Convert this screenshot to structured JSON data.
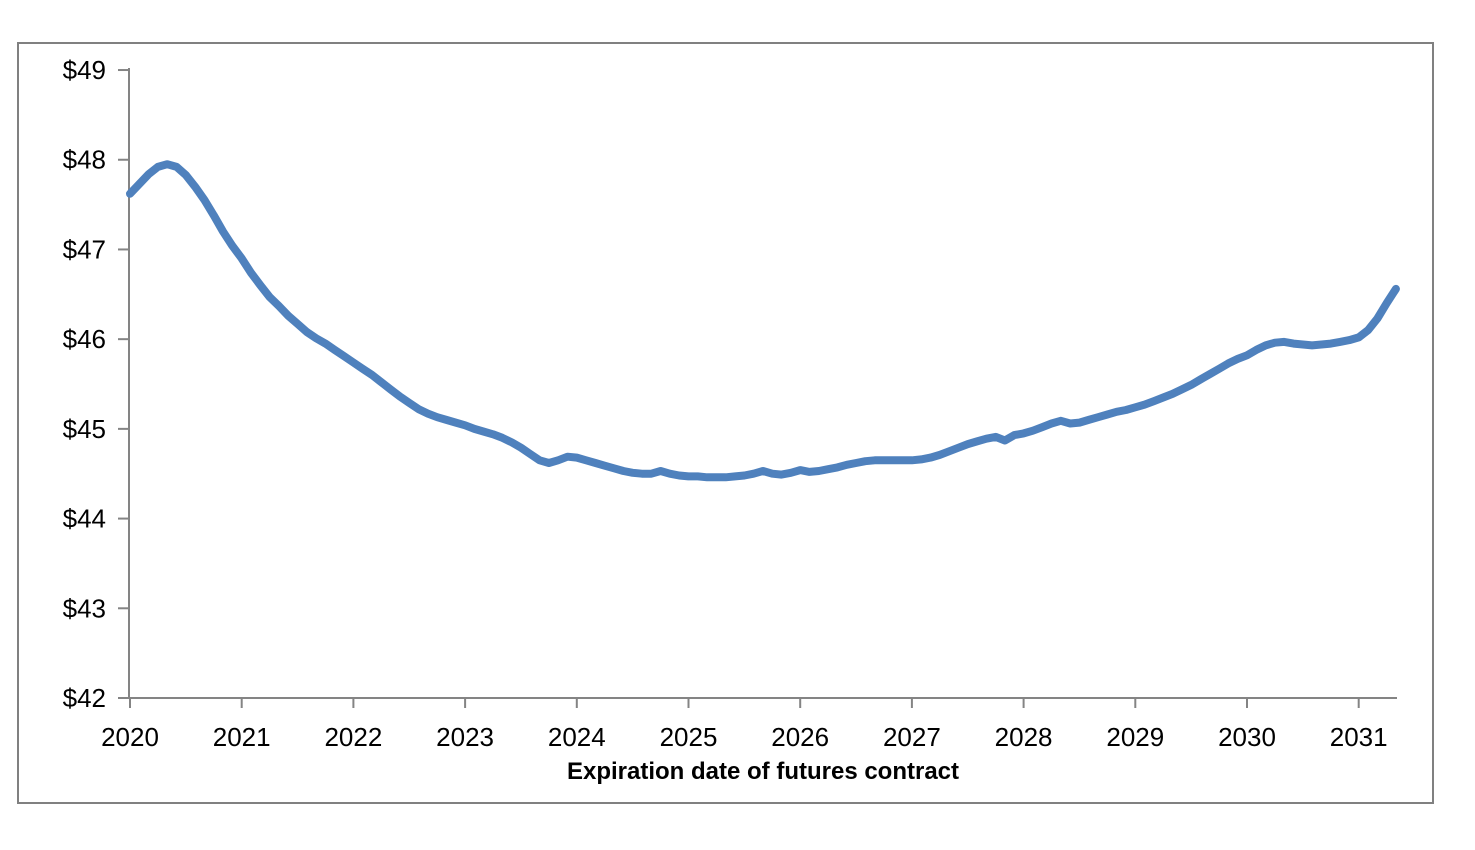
{
  "chart_data": {
    "type": "line",
    "title": "",
    "xlabel": "Expiration date of futures contract",
    "ylabel": "",
    "x_tick_labels": [
      "2020",
      "2021",
      "2022",
      "2023",
      "2024",
      "2025",
      "2026",
      "2027",
      "2028",
      "2029",
      "2030",
      "2031"
    ],
    "x_tick_values": [
      2020,
      2021,
      2022,
      2023,
      2024,
      2025,
      2026,
      2027,
      2028,
      2029,
      2030,
      2031
    ],
    "y_tick_labels": [
      "$42",
      "$43",
      "$44",
      "$45",
      "$46",
      "$47",
      "$48",
      "$49"
    ],
    "y_tick_values": [
      42,
      43,
      44,
      45,
      46,
      47,
      48,
      49
    ],
    "xlim": [
      2020,
      2031.36
    ],
    "ylim": [
      42,
      49
    ],
    "grid": false,
    "legend": "none",
    "line_color": "#4F81BD",
    "axis_color": "#848484",
    "frame_color": "#808080",
    "label_color": "#000000",
    "x": [
      2020.0,
      2020.083,
      2020.167,
      2020.25,
      2020.333,
      2020.417,
      2020.5,
      2020.583,
      2020.667,
      2020.75,
      2020.833,
      2020.917,
      2021.0,
      2021.083,
      2021.167,
      2021.25,
      2021.333,
      2021.417,
      2021.5,
      2021.583,
      2021.667,
      2021.75,
      2021.833,
      2021.917,
      2022.0,
      2022.083,
      2022.167,
      2022.25,
      2022.333,
      2022.417,
      2022.5,
      2022.583,
      2022.667,
      2022.75,
      2022.833,
      2022.917,
      2023.0,
      2023.083,
      2023.167,
      2023.25,
      2023.333,
      2023.417,
      2023.5,
      2023.583,
      2023.667,
      2023.75,
      2023.833,
      2023.917,
      2024.0,
      2024.083,
      2024.167,
      2024.25,
      2024.333,
      2024.417,
      2024.5,
      2024.583,
      2024.667,
      2024.75,
      2024.833,
      2024.917,
      2025.0,
      2025.083,
      2025.167,
      2025.25,
      2025.333,
      2025.417,
      2025.5,
      2025.583,
      2025.667,
      2025.75,
      2025.833,
      2025.917,
      2026.0,
      2026.083,
      2026.167,
      2026.25,
      2026.333,
      2026.417,
      2026.5,
      2026.583,
      2026.667,
      2026.75,
      2026.833,
      2026.917,
      2027.0,
      2027.083,
      2027.167,
      2027.25,
      2027.333,
      2027.417,
      2027.5,
      2027.583,
      2027.667,
      2027.75,
      2027.833,
      2027.917,
      2028.0,
      2028.083,
      2028.167,
      2028.25,
      2028.333,
      2028.417,
      2028.5,
      2028.583,
      2028.667,
      2028.75,
      2028.833,
      2028.917,
      2029.0,
      2029.083,
      2029.167,
      2029.25,
      2029.333,
      2029.417,
      2029.5,
      2029.583,
      2029.667,
      2029.75,
      2029.833,
      2029.917,
      2030.0,
      2030.083,
      2030.167,
      2030.25,
      2030.333,
      2030.417,
      2030.5,
      2030.583,
      2030.667,
      2030.75,
      2030.833,
      2030.917,
      2031.0,
      2031.083,
      2031.167,
      2031.25,
      2031.333
    ],
    "y": [
      47.62,
      47.73,
      47.84,
      47.92,
      47.95,
      47.92,
      47.83,
      47.7,
      47.55,
      47.38,
      47.2,
      47.04,
      46.9,
      46.74,
      46.6,
      46.47,
      46.37,
      46.26,
      46.17,
      46.08,
      46.01,
      45.95,
      45.88,
      45.81,
      45.74,
      45.67,
      45.6,
      45.52,
      45.44,
      45.36,
      45.29,
      45.22,
      45.17,
      45.13,
      45.1,
      45.07,
      45.04,
      45.0,
      44.97,
      44.94,
      44.9,
      44.85,
      44.79,
      44.72,
      44.65,
      44.62,
      44.65,
      44.69,
      44.68,
      44.65,
      44.62,
      44.59,
      44.56,
      44.53,
      44.51,
      44.5,
      44.5,
      44.53,
      44.5,
      44.48,
      44.47,
      44.47,
      44.46,
      44.46,
      44.46,
      44.47,
      44.48,
      44.5,
      44.53,
      44.5,
      44.49,
      44.51,
      44.54,
      44.52,
      44.53,
      44.55,
      44.57,
      44.6,
      44.62,
      44.64,
      44.65,
      44.65,
      44.65,
      44.65,
      44.65,
      44.66,
      44.68,
      44.71,
      44.75,
      44.79,
      44.83,
      44.86,
      44.89,
      44.91,
      44.87,
      44.93,
      44.95,
      44.98,
      45.02,
      45.06,
      45.09,
      45.06,
      45.07,
      45.1,
      45.13,
      45.16,
      45.19,
      45.21,
      45.24,
      45.27,
      45.31,
      45.35,
      45.39,
      45.44,
      45.49,
      45.55,
      45.61,
      45.67,
      45.73,
      45.78,
      45.82,
      45.88,
      45.93,
      45.96,
      45.97,
      45.95,
      45.94,
      45.93,
      45.94,
      45.95,
      45.97,
      45.99,
      46.02,
      46.1,
      46.23,
      46.4,
      46.56
    ]
  }
}
